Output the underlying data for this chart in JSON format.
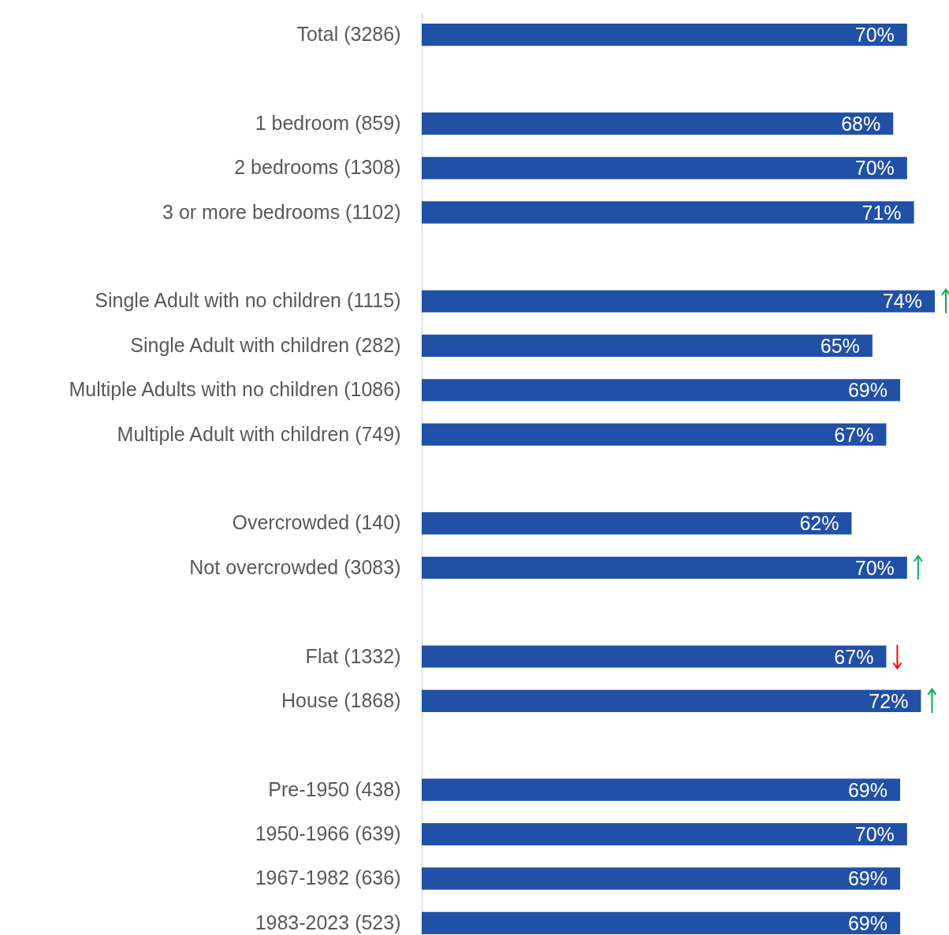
{
  "chart_data": {
    "type": "bar",
    "orientation": "horizontal",
    "color": "#2150a7",
    "categories": [
      "Total (3286)",
      null,
      "1  bedroom (859)",
      "2 bedrooms (1308)",
      "3 or more bedrooms (1102)",
      null,
      "Single Adult with no children (1115)",
      "Single Adult with children (282)",
      "Multiple Adults with no children (1086)",
      "Multiple Adult with children (749)",
      null,
      "Overcrowded (140)",
      "Not overcrowded (3083)",
      null,
      "Flat (1332)",
      "House (1868)",
      null,
      "Pre-1950 (438)",
      "1950-1966 (639)",
      "1967-1982 (636)",
      "1983-2023 (523)"
    ],
    "values": [
      70,
      null,
      68,
      70,
      71,
      null,
      74,
      65,
      69,
      67,
      null,
      62,
      70,
      null,
      67,
      72,
      null,
      69,
      70,
      69,
      69
    ],
    "value_labels": [
      "70%",
      null,
      "68%",
      "70%",
      "71%",
      null,
      "74%",
      "65%",
      "69%",
      "67%",
      null,
      "62%",
      "70%",
      null,
      "67%",
      "72%",
      null,
      "69%",
      "70%",
      "69%",
      "69%"
    ]
  }
}
